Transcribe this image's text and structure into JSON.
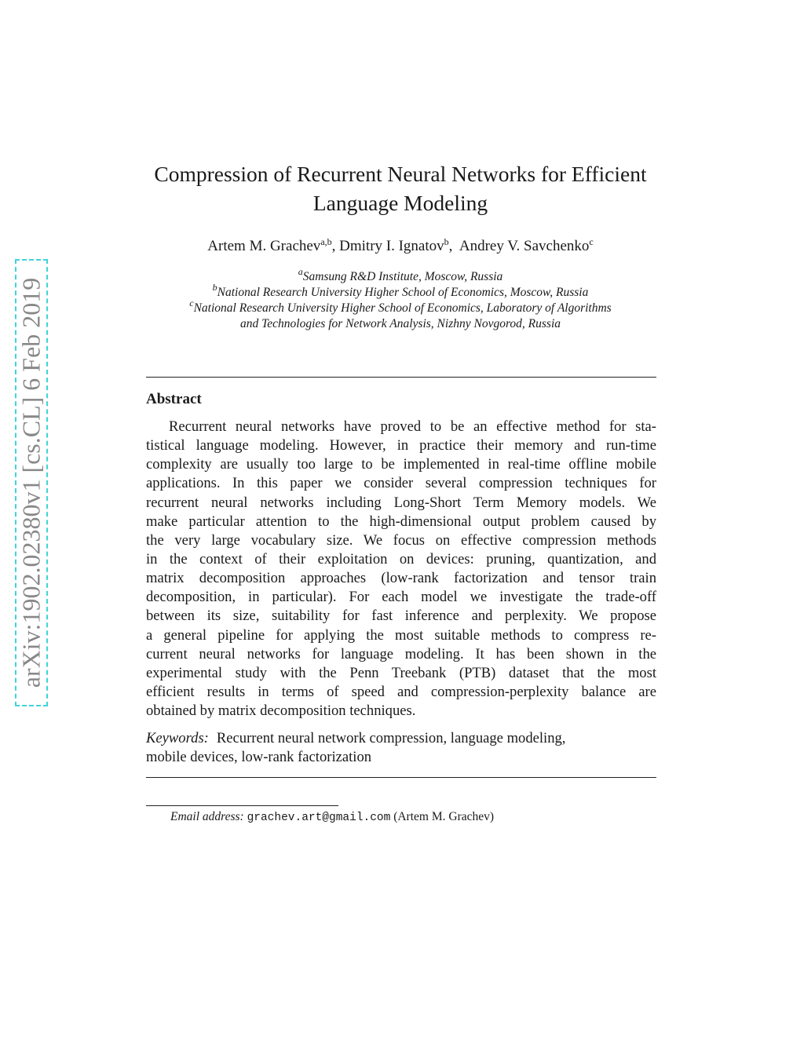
{
  "arxiv_stamp": "arXiv:1902.02380v1  [cs.CL]  6 Feb 2019",
  "title_line1": "Compression of Recurrent Neural Networks for Efficient",
  "title_line2": "Language Modeling",
  "authors": [
    {
      "name": "Artem M. Grachev",
      "sup": "a,b",
      "sep": ", "
    },
    {
      "name": "Dmitry I. Ignatov",
      "sup": "b",
      "sep": ",  "
    },
    {
      "name": "Andrey V. Savchenko",
      "sup": "c",
      "sep": ""
    }
  ],
  "affiliations": [
    {
      "sup": "a",
      "text": "Samsung R&D Institute, Moscow, Russia"
    },
    {
      "sup": "b",
      "text": "National Research University Higher School of Economics, Moscow, Russia"
    },
    {
      "sup": "c",
      "text": "National Research University Higher School of Economics, Laboratory of Algorithms"
    },
    {
      "sup": "",
      "text": "and Technologies for Network Analysis, Nizhny Novgorod, Russia"
    }
  ],
  "abstract_heading": "Abstract",
  "abstract_lines": [
    "Recurrent neural networks have proved to be an effective method for sta-",
    "tistical language modeling. However, in practice their memory and run-time",
    "complexity are usually too large to be implemented in real-time offline mobile",
    "applications. In this paper we consider several compression techniques for",
    "recurrent neural networks including Long-Short Term Memory models. We",
    "make particular attention to the high-dimensional output problem caused by",
    "the very large vocabulary size. We focus on effective compression methods",
    "in the context of their exploitation on devices: pruning, quantization, and",
    "matrix decomposition approaches (low-rank factorization and tensor train",
    "decomposition, in particular). For each model we investigate the trade-off",
    "between its size, suitability for fast inference and perplexity. We propose",
    "a general pipeline for applying the most suitable methods to compress re-",
    "current neural networks for language modeling. It has been shown in the",
    "experimental study with the Penn Treebank (PTB) dataset that the most",
    "efficient results in terms of speed and compression-perplexity balance are",
    "obtained by matrix decomposition techniques."
  ],
  "keywords_label": "Keywords:",
  "keywords_line1": "Recurrent neural network compression, language modeling,",
  "keywords_line2": "mobile devices, low-rank factorization",
  "footnote": {
    "label": "Email address:",
    "email": "grachev.art@gmail.com",
    "owner": "(Artem M. Grachev)"
  }
}
